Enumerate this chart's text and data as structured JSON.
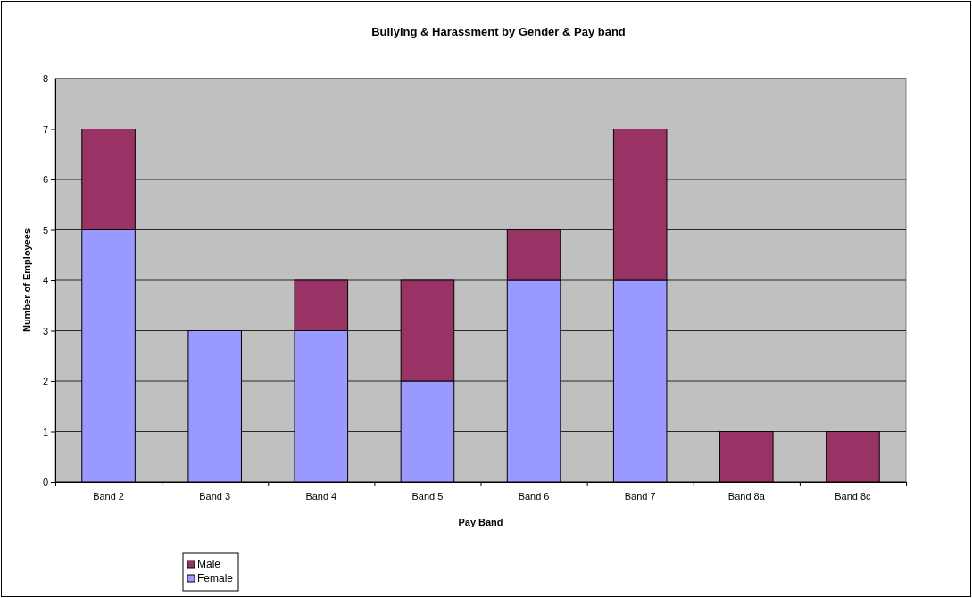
{
  "chart_data": {
    "type": "bar",
    "title": "Bullying & Harassment by Gender & Pay band",
    "xlabel": "Pay Band",
    "ylabel": "Number of Employees",
    "categories": [
      "Band 2",
      "Band 3",
      "Band 4",
      "Band 5",
      "Band 6",
      "Band 7",
      "Band 8a",
      "Band 8c"
    ],
    "stacked": true,
    "series": [
      {
        "name": "Female",
        "color": "#9999ff",
        "values": [
          5,
          3,
          3,
          2,
          4,
          4,
          0,
          0
        ]
      },
      {
        "name": "Male",
        "color": "#993366",
        "values": [
          2,
          0,
          1,
          2,
          1,
          3,
          1,
          1
        ]
      }
    ],
    "ylim": [
      0,
      8
    ],
    "yticks": [
      0,
      1,
      2,
      3,
      4,
      5,
      6,
      7,
      8
    ],
    "grid": "y",
    "legend": "bottom"
  }
}
